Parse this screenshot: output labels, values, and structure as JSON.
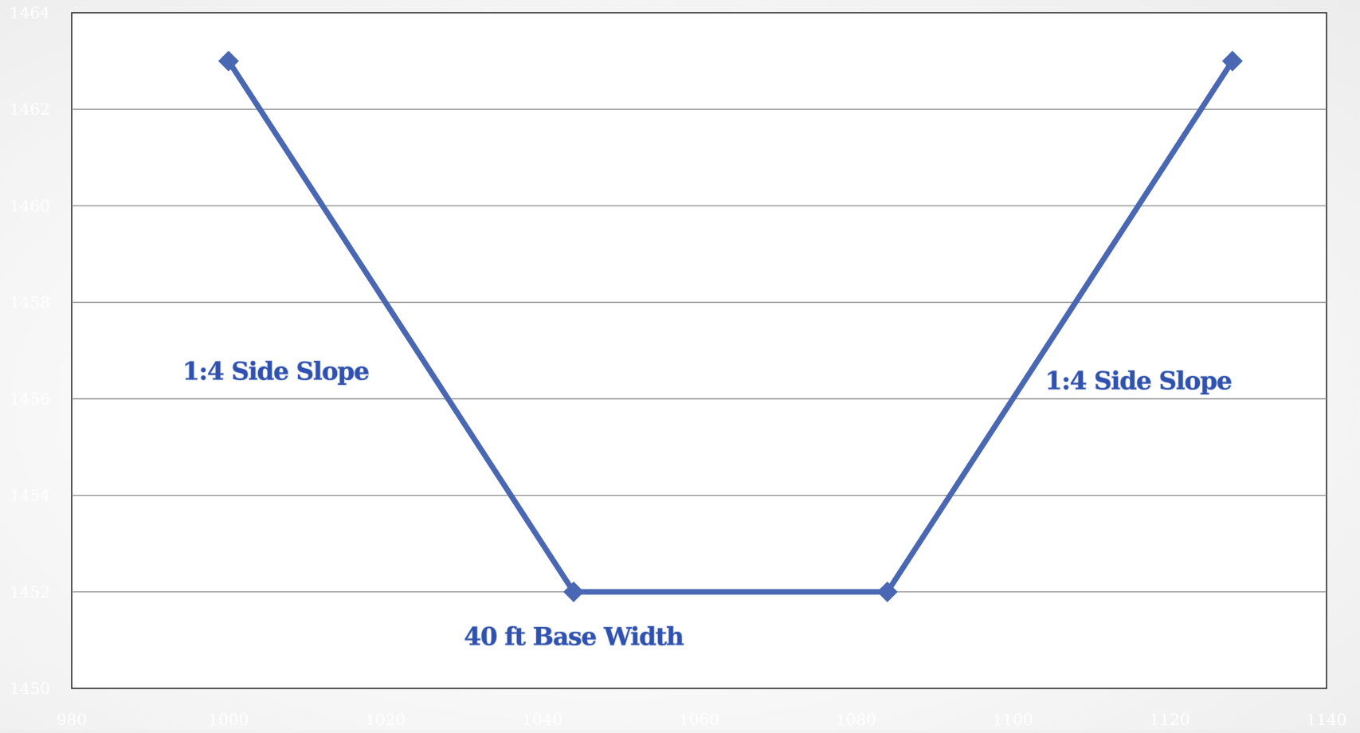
{
  "chart_data": {
    "type": "scatter",
    "title": "",
    "xlabel": "",
    "ylabel": "",
    "xlim": [
      980,
      1140
    ],
    "ylim": [
      1450,
      1464
    ],
    "x_ticks": [
      "980",
      "1000",
      "1020",
      "1040",
      "1060",
      "1080",
      "1100",
      "1120",
      "1140"
    ],
    "y_ticks": [
      "1450",
      "1452",
      "1454",
      "1456",
      "1458",
      "1460",
      "1462",
      "1464"
    ],
    "grid": "horizontal",
    "legend": "none",
    "series": [
      {
        "x": [
          1000,
          1044,
          1084,
          1128
        ],
        "y": [
          1463,
          1452,
          1452,
          1463
        ],
        "color": "#4a67b4",
        "marker": "diamond"
      }
    ],
    "annotations": [
      {
        "text": "1:4 Side Slope",
        "x": 1006,
        "y": 1456.4
      },
      {
        "text": "40 ft Base Width",
        "x": 1044,
        "y": 1450.9
      },
      {
        "text": "1:4 Side Slope",
        "x": 1116,
        "y": 1456.2
      }
    ]
  }
}
